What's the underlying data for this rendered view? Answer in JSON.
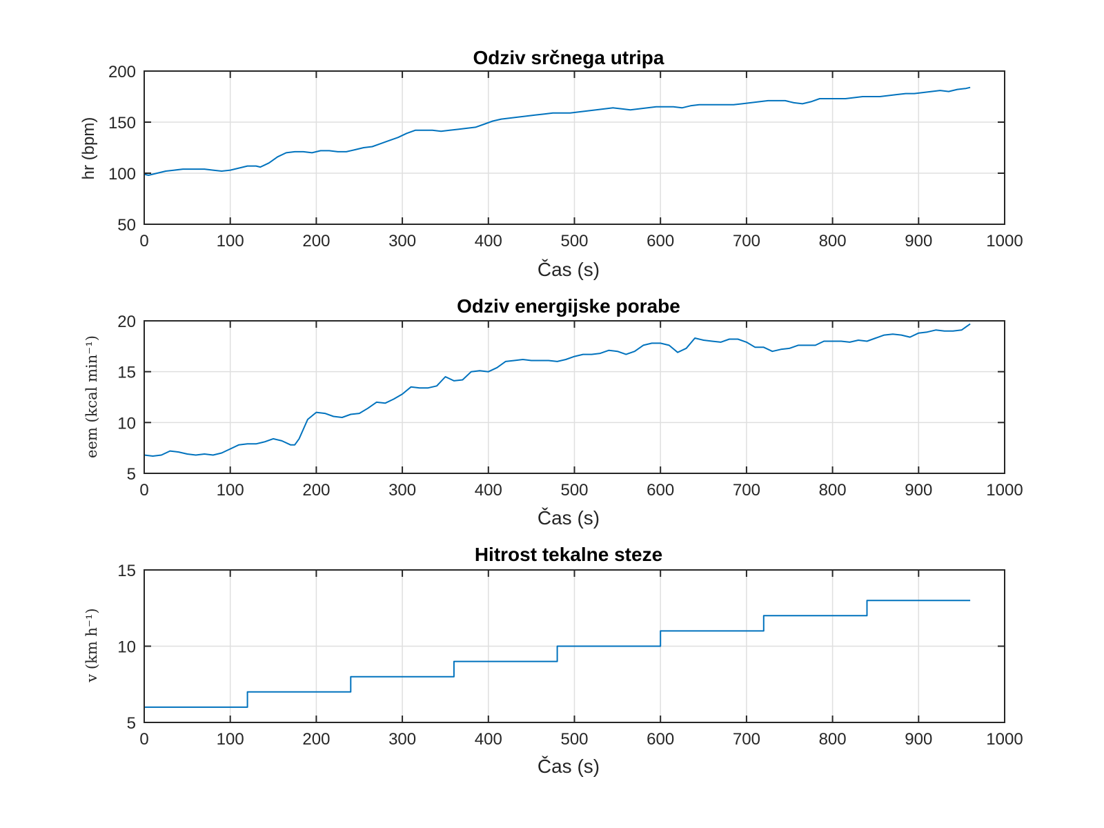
{
  "colors": {
    "line": "#0072BD",
    "axis": "#262626",
    "grid": "#DFDFDF"
  },
  "chart_data": [
    {
      "type": "line",
      "title": "Odziv srčnega utripa",
      "xlabel": "Čas (s)",
      "ylabel": "hr (bpm)",
      "xlim": [
        0,
        1000
      ],
      "ylim": [
        50,
        200
      ],
      "xticks": [
        0,
        100,
        200,
        300,
        400,
        500,
        600,
        700,
        800,
        900,
        1000
      ],
      "yticks": [
        50,
        100,
        150,
        200
      ],
      "grid": true,
      "x": [
        0,
        5,
        15,
        25,
        35,
        45,
        55,
        65,
        70,
        80,
        90,
        100,
        110,
        120,
        130,
        135,
        145,
        155,
        165,
        175,
        185,
        195,
        205,
        215,
        225,
        235,
        245,
        255,
        265,
        275,
        285,
        295,
        305,
        315,
        325,
        335,
        345,
        355,
        365,
        375,
        385,
        395,
        405,
        415,
        425,
        435,
        445,
        455,
        465,
        475,
        485,
        495,
        505,
        515,
        525,
        535,
        545,
        555,
        565,
        575,
        585,
        595,
        605,
        615,
        625,
        635,
        645,
        655,
        665,
        675,
        685,
        695,
        705,
        715,
        725,
        735,
        745,
        755,
        765,
        775,
        785,
        795,
        805,
        815,
        825,
        835,
        845,
        855,
        865,
        875,
        885,
        895,
        905,
        915,
        925,
        935,
        945,
        955,
        960
      ],
      "series": [
        {
          "values": [
            99,
            98,
            100,
            102,
            103,
            104,
            104,
            104,
            104,
            103,
            102,
            103,
            105,
            107,
            107,
            106,
            110,
            116,
            120,
            121,
            121,
            120,
            122,
            122,
            121,
            121,
            123,
            125,
            126,
            129,
            132,
            135,
            139,
            142,
            142,
            142,
            141,
            142,
            143,
            144,
            145,
            148,
            151,
            153,
            154,
            155,
            156,
            157,
            158,
            159,
            159,
            159,
            160,
            161,
            162,
            163,
            164,
            163,
            162,
            163,
            164,
            165,
            165,
            165,
            164,
            166,
            167,
            167,
            167,
            167,
            167,
            168,
            169,
            170,
            171,
            171,
            171,
            169,
            168,
            170,
            173,
            173,
            173,
            173,
            174,
            175,
            175,
            175,
            176,
            177,
            178,
            178,
            179,
            180,
            181,
            180,
            182,
            183,
            184
          ]
        }
      ]
    },
    {
      "type": "line",
      "title": "Odziv energijske porabe",
      "xlabel": "Čas (s)",
      "ylabel": "eem (kcal min⁻¹)",
      "xlim": [
        0,
        1000
      ],
      "ylim": [
        5,
        20
      ],
      "xticks": [
        0,
        100,
        200,
        300,
        400,
        500,
        600,
        700,
        800,
        900,
        1000
      ],
      "yticks": [
        5,
        10,
        15,
        20
      ],
      "grid": true,
      "x": [
        0,
        10,
        20,
        30,
        40,
        50,
        60,
        70,
        80,
        90,
        100,
        110,
        120,
        130,
        140,
        150,
        160,
        170,
        175,
        180,
        190,
        200,
        210,
        220,
        230,
        240,
        250,
        260,
        270,
        280,
        290,
        300,
        310,
        320,
        330,
        340,
        350,
        360,
        370,
        380,
        390,
        400,
        410,
        420,
        430,
        440,
        450,
        460,
        470,
        480,
        490,
        500,
        510,
        520,
        530,
        540,
        550,
        560,
        570,
        580,
        590,
        600,
        610,
        620,
        630,
        640,
        650,
        660,
        670,
        680,
        690,
        700,
        710,
        720,
        730,
        740,
        750,
        760,
        770,
        780,
        790,
        800,
        810,
        820,
        830,
        840,
        850,
        860,
        870,
        880,
        890,
        900,
        910,
        920,
        930,
        940,
        950,
        960
      ],
      "series": [
        {
          "values": [
            6.8,
            6.7,
            6.8,
            7.2,
            7.1,
            6.9,
            6.8,
            6.9,
            6.8,
            7.0,
            7.4,
            7.8,
            7.9,
            7.9,
            8.1,
            8.4,
            8.2,
            7.8,
            7.8,
            8.4,
            10.3,
            11.0,
            10.9,
            10.6,
            10.5,
            10.8,
            10.9,
            11.4,
            12.0,
            11.9,
            12.3,
            12.8,
            13.5,
            13.4,
            13.4,
            13.6,
            14.5,
            14.1,
            14.2,
            15.0,
            15.1,
            15.0,
            15.4,
            16.0,
            16.1,
            16.2,
            16.1,
            16.1,
            16.1,
            16.0,
            16.2,
            16.5,
            16.7,
            16.7,
            16.8,
            17.1,
            17.0,
            16.7,
            17.0,
            17.6,
            17.8,
            17.8,
            17.6,
            16.9,
            17.3,
            18.3,
            18.1,
            18.0,
            17.9,
            18.2,
            18.2,
            17.9,
            17.4,
            17.4,
            17.0,
            17.2,
            17.3,
            17.6,
            17.6,
            17.6,
            18.0,
            18.0,
            18.0,
            17.9,
            18.1,
            18.0,
            18.3,
            18.6,
            18.7,
            18.6,
            18.4,
            18.8,
            18.9,
            19.1,
            19.0,
            19.0,
            19.1,
            19.7
          ]
        }
      ]
    },
    {
      "type": "line",
      "title": "Hitrost tekalne steze",
      "xlabel": "Čas (s)",
      "ylabel": "v (km h⁻¹)",
      "xlim": [
        0,
        1000
      ],
      "ylim": [
        5,
        15
      ],
      "xticks": [
        0,
        100,
        200,
        300,
        400,
        500,
        600,
        700,
        800,
        900,
        1000
      ],
      "yticks": [
        5,
        10,
        15
      ],
      "grid": true,
      "step": true,
      "x": [
        0,
        120,
        240,
        360,
        480,
        600,
        720,
        840,
        960
      ],
      "series": [
        {
          "values": [
            6,
            7,
            8,
            9,
            10,
            11,
            12,
            13,
            13
          ]
        }
      ]
    }
  ]
}
